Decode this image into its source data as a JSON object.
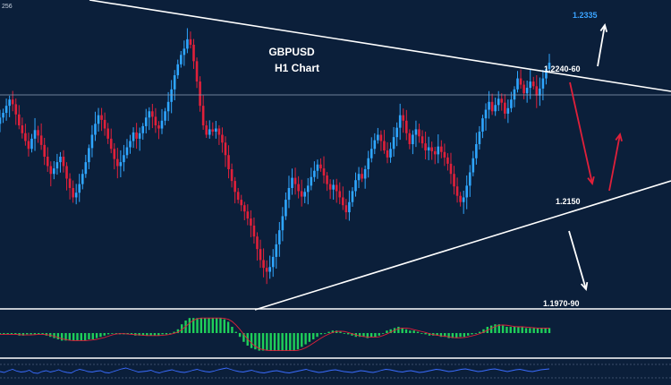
{
  "chart_data": {
    "type": "candlestick",
    "symbol": "GBPUSD",
    "timeframe": "H1 Chart",
    "corner_label": "256",
    "colors": {
      "up": "#2fa6ff",
      "down": "#e0203a",
      "background": "#0b1f3a",
      "lines": "#ffffff",
      "target_text": "#3aa3ff",
      "macd_hist": "#1fcf5a",
      "macd_signal": "#e0203a",
      "rsi_line": "#3a6cff"
    },
    "levels": [
      {
        "label": "1.2335",
        "color": "#3aa3ff"
      },
      {
        "label": "1.2240-60",
        "color": "#ffffff"
      },
      {
        "label": "1.2150",
        "color": "#ffffff"
      },
      {
        "label": "1.1970-90",
        "color": "#ffffff"
      }
    ],
    "price_close": [
      1.219,
      1.2196,
      1.2205,
      1.2213,
      1.2207,
      1.2194,
      1.218,
      1.217,
      1.216,
      1.215,
      1.2163,
      1.2174,
      1.2167,
      1.2155,
      1.214,
      1.2128,
      1.2118,
      1.2125,
      1.2133,
      1.214,
      1.2128,
      1.2112,
      1.21,
      1.2088,
      1.2094,
      1.2105,
      1.2118,
      1.2133,
      1.2151,
      1.2168,
      1.2182,
      1.2193,
      1.2187,
      1.2176,
      1.2163,
      1.215,
      1.2137,
      1.2128,
      1.2133,
      1.2142,
      1.2152,
      1.216,
      1.2171,
      1.2163,
      1.217,
      1.2179,
      1.219,
      1.2198,
      1.2191,
      1.218,
      1.2176,
      1.2186,
      1.2198,
      1.221,
      1.2226,
      1.2244,
      1.2258,
      1.227,
      1.2278,
      1.229,
      1.2283,
      1.2262,
      1.2236,
      1.2205,
      1.218,
      1.2168,
      1.2175,
      1.2172,
      1.2176,
      1.2168,
      1.2158,
      1.2142,
      1.2124,
      1.2109,
      1.2095,
      1.2085,
      1.2078,
      1.207,
      1.2061,
      1.2052,
      1.2038,
      1.2022,
      1.2008,
      1.1998,
      1.1993,
      1.1999,
      1.2012,
      1.2028,
      1.2046,
      1.2064,
      1.2085,
      1.21,
      1.2113,
      1.2105,
      1.2096,
      1.2089,
      1.2095,
      1.2103,
      1.2114,
      1.2122,
      1.213,
      1.2125,
      1.2116,
      1.2105,
      1.2098,
      1.2104,
      1.2096,
      1.2088,
      1.2078,
      1.2069,
      1.2082,
      1.2096,
      1.211,
      1.2118,
      1.2112,
      1.2124,
      1.2138,
      1.215,
      1.2161,
      1.2168,
      1.216,
      1.2148,
      1.2139,
      1.215,
      1.2165,
      1.2177,
      1.2193,
      1.2186,
      1.217,
      1.2156,
      1.2168,
      1.2175,
      1.2166,
      1.2157,
      1.2148,
      1.2152,
      1.2147,
      1.2143,
      1.2153,
      1.2146,
      1.2139,
      1.2131,
      1.2118,
      1.2102,
      1.209,
      1.2082,
      1.2088,
      1.2103,
      1.212,
      1.2138,
      1.2156,
      1.2172,
      1.2189,
      1.22,
      1.221,
      1.2198,
      1.2206,
      1.2214,
      1.2209,
      1.2195,
      1.2202,
      1.2213,
      1.2226,
      1.224,
      1.2232,
      1.2221,
      1.2228,
      1.2236,
      1.223,
      1.2218,
      1.2227,
      1.224,
      1.2252,
      1.226
    ],
    "macd_histogram": [
      -0.1,
      -0.1,
      -0.1,
      -0.1,
      -0.1,
      -0.2,
      -0.2,
      -0.1,
      -0.1,
      -0.1,
      -0.1,
      -0.1,
      -0.2,
      -0.3,
      -0.4,
      -0.5,
      -0.6,
      -0.6,
      -0.6,
      -0.6,
      -0.6,
      -0.6,
      -0.6,
      -0.5,
      -0.5,
      -0.4,
      -0.3,
      -0.2,
      -0.1,
      0.0,
      0.0,
      -0.1,
      -0.1,
      -0.1,
      -0.1,
      -0.2,
      -0.2,
      -0.2,
      -0.2,
      -0.2,
      -0.2,
      -0.2,
      -0.1,
      -0.1,
      0.0,
      0.1,
      0.3,
      0.7,
      1.0,
      1.2,
      1.2,
      1.2,
      1.2,
      1.2,
      1.2,
      1.2,
      1.2,
      1.2,
      1.1,
      0.9,
      0.5,
      0.1,
      -0.3,
      -0.7,
      -1.0,
      -1.2,
      -1.3,
      -1.4,
      -1.4,
      -1.4,
      -1.4,
      -1.4,
      -1.4,
      -1.4,
      -1.4,
      -1.4,
      -1.4,
      -1.3,
      -1.1,
      -0.9,
      -0.7,
      -0.5,
      -0.3,
      -0.1,
      0.0,
      0.1,
      0.2,
      0.2,
      0.1,
      0.0,
      -0.1,
      -0.2,
      -0.3,
      -0.3,
      -0.3,
      -0.4,
      -0.3,
      -0.3,
      -0.2,
      0.0,
      0.2,
      0.3,
      0.4,
      0.5,
      0.4,
      0.3,
      0.2,
      0.2,
      0.1,
      0.0,
      -0.1,
      -0.2,
      -0.2,
      -0.2,
      -0.3,
      -0.3,
      -0.4,
      -0.4,
      -0.4,
      -0.3,
      -0.3,
      -0.2,
      -0.1,
      0.0,
      0.1,
      0.3,
      0.5,
      0.6,
      0.7,
      0.7,
      0.6,
      0.5,
      0.5,
      0.5,
      0.5,
      0.5,
      0.4,
      0.4,
      0.4,
      0.4,
      0.4,
      0.4,
      0.4
    ],
    "rsi": [
      50,
      48,
      52,
      55,
      51,
      49,
      50,
      53,
      47,
      46,
      50,
      52,
      49,
      51,
      54,
      50,
      48,
      47,
      52,
      55,
      53,
      50,
      49,
      51,
      52,
      48,
      47,
      50,
      53,
      56,
      58,
      55,
      52,
      49,
      50,
      51,
      53,
      49,
      47,
      50,
      52,
      54,
      51,
      49,
      48,
      50,
      53,
      55,
      52,
      50,
      49,
      51,
      54,
      56,
      58,
      55,
      52,
      50,
      49,
      51,
      53,
      50,
      48,
      47,
      49,
      51,
      52,
      50,
      48,
      47,
      49,
      51,
      53,
      55,
      52,
      50,
      48,
      49,
      51,
      53,
      54,
      52,
      50,
      49,
      48,
      50,
      52,
      51,
      49,
      48,
      50,
      53,
      55,
      54,
      52,
      50,
      49,
      51,
      52,
      50,
      48,
      49,
      51,
      53,
      55,
      54,
      52,
      50,
      51,
      53,
      55,
      56,
      54,
      52,
      50,
      51,
      53,
      55,
      56,
      54,
      52,
      50,
      52,
      54,
      55,
      53,
      51,
      50,
      52,
      54,
      55,
      56
    ]
  }
}
